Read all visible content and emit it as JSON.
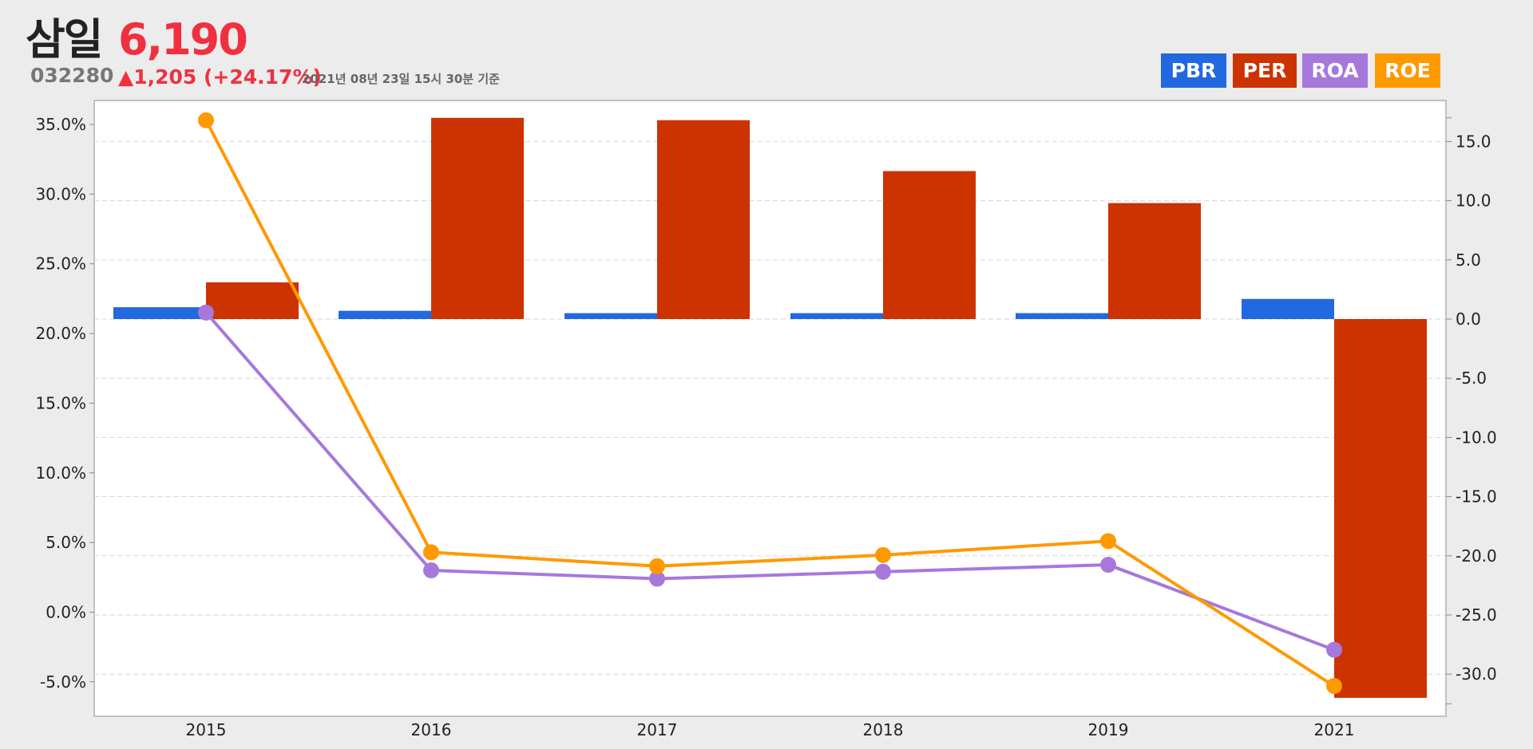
{
  "header": {
    "company": "삼일",
    "price": "6,190",
    "code": "032280",
    "change": "▲1,205 (+24.17%)",
    "timestamp": "2021년 08년 23일 15시 30분 기준"
  },
  "colors": {
    "PBR": "#2268e0",
    "PER": "#cc3300",
    "ROA": "#a678dc",
    "ROE": "#ff9900",
    "price_up": "#f03040"
  },
  "chart_data": {
    "type": "bar",
    "categories": [
      "2015",
      "2016",
      "2017",
      "2018",
      "2019",
      "2021"
    ],
    "legend": [
      "PBR",
      "PER",
      "ROA",
      "ROE"
    ],
    "legend_placement": "top-right",
    "grid": true,
    "left_axis": {
      "ticks": [
        "35.0%",
        "30.0%",
        "25.0%",
        "20.0%",
        "15.0%",
        "10.0%",
        "5.0%",
        "0.0%",
        "-5.0%"
      ],
      "ylim": [
        -7.5,
        36.9
      ]
    },
    "right_axis": {
      "ticks": [
        "15.0",
        "10.0",
        "5.0",
        "0.0",
        "-5.0",
        "-10.0",
        "-15.0",
        "-20.0",
        "-25.0",
        "-30.0"
      ],
      "ylim": [
        -33.2,
        17.0
      ]
    },
    "series": [
      {
        "name": "PBR",
        "type": "bar",
        "axis": "right",
        "values": [
          1.0,
          0.7,
          0.5,
          0.5,
          0.5,
          1.7
        ]
      },
      {
        "name": "PER",
        "type": "bar",
        "axis": "right",
        "values": [
          3.1,
          17.0,
          16.8,
          12.5,
          9.8,
          -32.0
        ]
      },
      {
        "name": "ROA",
        "type": "line",
        "axis": "left",
        "values": [
          21.5,
          3.0,
          2.4,
          2.9,
          3.4,
          -2.7
        ]
      },
      {
        "name": "ROE",
        "type": "line",
        "axis": "left",
        "values": [
          35.3,
          4.3,
          3.3,
          4.1,
          5.1,
          -5.3
        ]
      }
    ]
  }
}
